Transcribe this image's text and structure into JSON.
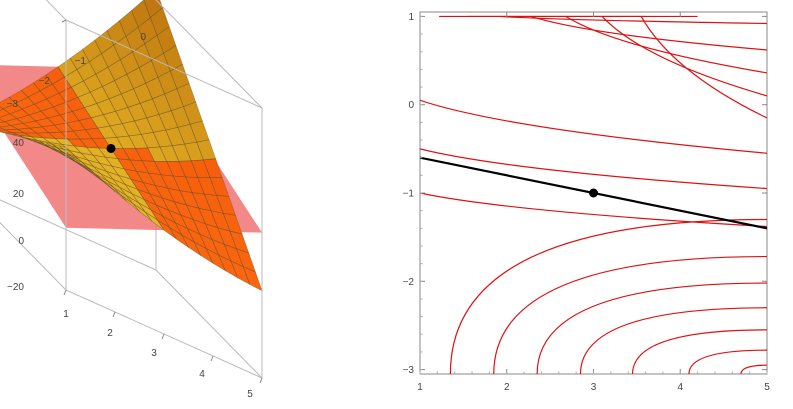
{
  "chart_data": [
    {
      "type": "surface3d",
      "title": "",
      "xlabel": "",
      "ylabel": "",
      "zlabel": "",
      "x_ticks": [
        "1",
        "2",
        "3",
        "4",
        "5"
      ],
      "y_ticks": [
        "0",
        "−1",
        "−2",
        "−3"
      ],
      "z_ticks": [
        "40",
        "20",
        "0",
        "−20"
      ],
      "xlim": [
        1,
        5
      ],
      "ylim": [
        -3,
        1
      ],
      "zlim": [
        -30,
        48
      ],
      "surface_grid": [
        16,
        16
      ],
      "tangent_plane_color": "#f06a6a",
      "surface_color_low": "#ffe135",
      "surface_color_high": "#b86a0a",
      "overlap_color": "#ff4a08",
      "point": {
        "x": 3,
        "y": -1
      },
      "point_color": "#000000"
    },
    {
      "type": "contour",
      "title": "",
      "xlabel": "",
      "ylabel": "",
      "x_ticks": [
        "1",
        "2",
        "3",
        "4",
        "5"
      ],
      "y_ticks": [
        "1",
        "0",
        "−1",
        "−2",
        "−3"
      ],
      "xlim": [
        1,
        5
      ],
      "ylim": [
        -3.05,
        1.05
      ],
      "contour_color": "#dd1111",
      "contours_upper": [
        {
          "x0": 1.22,
          "y0": 1.0,
          "x1": 3.6,
          "y1": 1.0
        },
        {
          "x0": 1.55,
          "y0": 1.0,
          "x1": 4.2,
          "y1": 1.0
        },
        {
          "x0": 1.9,
          "y0": 1.0,
          "x1": 5.0,
          "y1": 0.92
        },
        {
          "x0": 2.28,
          "y0": 1.0,
          "x1": 5.0,
          "y1": 0.62
        },
        {
          "x0": 2.68,
          "y0": 1.0,
          "x1": 5.0,
          "y1": 0.36
        },
        {
          "x0": 3.1,
          "y0": 1.0,
          "x1": 5.0,
          "y1": 0.1
        },
        {
          "x0": 3.55,
          "y0": 1.0,
          "x1": 5.0,
          "y1": -0.15
        },
        {
          "x0": 1.0,
          "y0": 0.05,
          "x1": 5.0,
          "y1": -0.55
        },
        {
          "x0": 1.0,
          "y0": -0.5,
          "x1": 5.0,
          "y1": -0.95
        },
        {
          "x0": 1.0,
          "y0": -1.0,
          "x1": 5.0,
          "y1": -1.38
        }
      ],
      "contours_lower": [
        {
          "xa": 1.35,
          "ya": -3.05,
          "xb": 5.0,
          "yb": -1.3
        },
        {
          "xa": 1.85,
          "ya": -3.05,
          "xb": 5.0,
          "yb": -1.72
        },
        {
          "xa": 2.35,
          "ya": -3.05,
          "xb": 5.0,
          "yb": -2.02
        },
        {
          "xa": 2.85,
          "ya": -3.05,
          "xb": 5.0,
          "yb": -2.3
        },
        {
          "xa": 3.45,
          "ya": -3.05,
          "xb": 5.0,
          "yb": -2.55
        },
        {
          "xa": 4.1,
          "ya": -3.05,
          "xb": 5.0,
          "yb": -2.78
        },
        {
          "xa": 4.7,
          "ya": -3.05,
          "xb": 5.0,
          "yb": -2.95
        }
      ],
      "tangent_line": {
        "x": [
          1,
          5
        ],
        "y": [
          -0.6,
          -1.4
        ]
      },
      "tangent_line_color": "#000000",
      "point": {
        "x": 3,
        "y": -1
      },
      "point_color": "#000000"
    }
  ]
}
